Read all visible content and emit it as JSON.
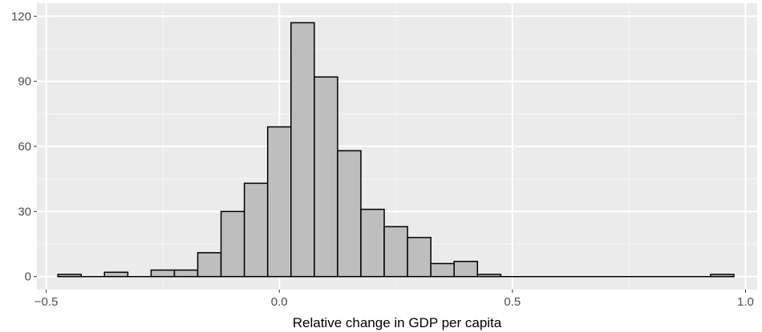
{
  "chart_data": {
    "type": "bar",
    "xlabel": "Relative change in GDP per capita",
    "ylabel": "",
    "xlim": [
      -0.5,
      1.0
    ],
    "ylim": [
      0,
      120
    ],
    "x_ticks": [
      "−0.5",
      "0.0",
      "0.5",
      "1.0"
    ],
    "x_tick_values": [
      -0.5,
      0.0,
      0.5,
      1.0
    ],
    "y_ticks": [
      "0",
      "30",
      "60",
      "90",
      "120"
    ],
    "y_tick_values": [
      0,
      30,
      60,
      90,
      120
    ],
    "bin_width": 0.05,
    "bins": [
      {
        "x0": -0.475,
        "x1": -0.425,
        "count": 1
      },
      {
        "x0": -0.375,
        "x1": -0.325,
        "count": 2
      },
      {
        "x0": -0.275,
        "x1": -0.225,
        "count": 3
      },
      {
        "x0": -0.225,
        "x1": -0.175,
        "count": 3
      },
      {
        "x0": -0.175,
        "x1": -0.125,
        "count": 11
      },
      {
        "x0": -0.125,
        "x1": -0.075,
        "count": 30
      },
      {
        "x0": -0.075,
        "x1": -0.025,
        "count": 43
      },
      {
        "x0": -0.025,
        "x1": 0.025,
        "count": 69
      },
      {
        "x0": 0.025,
        "x1": 0.075,
        "count": 117
      },
      {
        "x0": 0.075,
        "x1": 0.125,
        "count": 92
      },
      {
        "x0": 0.125,
        "x1": 0.175,
        "count": 58
      },
      {
        "x0": 0.175,
        "x1": 0.225,
        "count": 31
      },
      {
        "x0": 0.225,
        "x1": 0.275,
        "count": 23
      },
      {
        "x0": 0.275,
        "x1": 0.325,
        "count": 18
      },
      {
        "x0": 0.325,
        "x1": 0.375,
        "count": 6
      },
      {
        "x0": 0.375,
        "x1": 0.425,
        "count": 7
      },
      {
        "x0": 0.425,
        "x1": 0.475,
        "count": 1
      },
      {
        "x0": 0.925,
        "x1": 0.975,
        "count": 1
      }
    ],
    "grid": true,
    "legend": "none",
    "colors": {
      "panel": "#ebebeb",
      "grid_major": "#ffffff",
      "grid_minor": "#f5f5f5",
      "bar_fill": "#bebebe",
      "bar_stroke": "#000000"
    }
  }
}
